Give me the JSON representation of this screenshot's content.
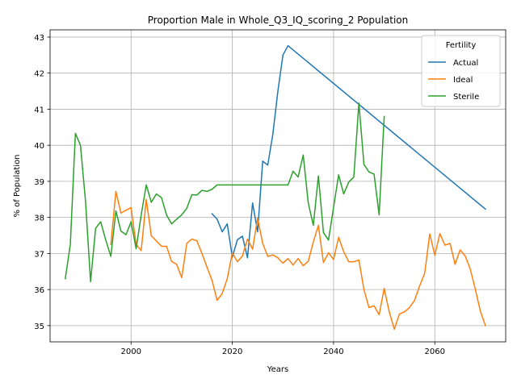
{
  "chart_data": {
    "type": "line",
    "title": "Proportion Male in Whole_Q3_IQ_scoring_2 Population",
    "xlabel": "Years",
    "ylabel": "% of Population",
    "xlim": [
      1984,
      2074
    ],
    "ylim": [
      34.55,
      43.2
    ],
    "xticks": [
      2000,
      2020,
      2040,
      2060
    ],
    "yticks": [
      35,
      36,
      37,
      38,
      39,
      40,
      41,
      42,
      43
    ],
    "grid": true,
    "legend": {
      "title": "Fertility",
      "position": "top-right"
    },
    "series": [
      {
        "name": "Actual",
        "color": "#1f77b4",
        "x": [
          2016,
          2017,
          2018,
          2019,
          2020,
          2021,
          2022,
          2023,
          2024,
          2025,
          2026,
          2027,
          2028,
          2029,
          2030,
          2031,
          2070
        ],
        "y": [
          38.1,
          37.95,
          37.6,
          37.82,
          36.9,
          37.38,
          37.48,
          36.88,
          38.4,
          37.6,
          39.56,
          39.45,
          40.3,
          41.5,
          42.5,
          42.76,
          38.23
        ]
      },
      {
        "name": "Ideal",
        "color": "#ff7f0e",
        "x": [
          1996,
          1997,
          1998,
          1999,
          2000,
          2001,
          2002,
          2003,
          2004,
          2005,
          2006,
          2007,
          2008,
          2009,
          2010,
          2011,
          2012,
          2013,
          2014,
          2015,
          2016,
          2017,
          2018,
          2019,
          2020,
          2021,
          2022,
          2023,
          2024,
          2025,
          2026,
          2027,
          2028,
          2029,
          2030,
          2031,
          2032,
          2033,
          2034,
          2035,
          2036,
          2037,
          2038,
          2039,
          2040,
          2041,
          2042,
          2043,
          2044,
          2045,
          2046,
          2047,
          2048,
          2049,
          2050,
          2051,
          2052,
          2053,
          2054,
          2055,
          2056,
          2057,
          2058,
          2059,
          2060,
          2061,
          2062,
          2063,
          2064,
          2065,
          2066,
          2067,
          2068,
          2069,
          2070
        ],
        "y": [
          37.25,
          38.72,
          38.12,
          38.2,
          38.27,
          37.25,
          37.08,
          38.5,
          37.49,
          37.35,
          37.2,
          37.2,
          36.78,
          36.7,
          36.33,
          37.28,
          37.4,
          37.35,
          37.0,
          36.62,
          36.25,
          35.7,
          35.89,
          36.3,
          37.02,
          36.77,
          36.93,
          37.4,
          37.12,
          37.98,
          37.28,
          36.92,
          36.96,
          36.88,
          36.73,
          36.86,
          36.68,
          36.86,
          36.66,
          36.78,
          37.32,
          37.78,
          36.75,
          37.02,
          36.83,
          37.45,
          37.05,
          36.77,
          36.77,
          36.82,
          36.0,
          35.5,
          35.55,
          35.3,
          36.03,
          35.38,
          34.9,
          35.32,
          35.38,
          35.5,
          35.7,
          36.1,
          36.45,
          37.54,
          36.95,
          37.55,
          37.23,
          37.28,
          36.7,
          37.1,
          36.93,
          36.57,
          36.01,
          35.4,
          35.0
        ]
      },
      {
        "name": "Sterile",
        "color": "#2ca02c",
        "x": [
          1987,
          1988,
          1989,
          1990,
          1991,
          1992,
          1993,
          1994,
          1995,
          1996,
          1997,
          1998,
          1999,
          2000,
          2001,
          2002,
          2003,
          2004,
          2005,
          2006,
          2007,
          2008,
          2009,
          2010,
          2011,
          2012,
          2013,
          2014,
          2015,
          2016,
          2017,
          2018,
          2019,
          2020,
          2021,
          2022,
          2023,
          2024,
          2025,
          2026,
          2027,
          2028,
          2029,
          2030,
          2031,
          2032,
          2033,
          2034,
          2035,
          2036,
          2037,
          2038,
          2039,
          2040,
          2041,
          2042,
          2043,
          2044,
          2045,
          2046,
          2047,
          2048,
          2049,
          2050
        ],
        "y": [
          36.3,
          37.25,
          40.33,
          40.0,
          38.45,
          36.22,
          37.7,
          37.88,
          37.37,
          36.92,
          38.18,
          37.62,
          37.52,
          37.88,
          37.13,
          38.07,
          38.9,
          38.42,
          38.65,
          38.55,
          38.07,
          37.82,
          37.95,
          38.07,
          38.25,
          38.63,
          38.62,
          38.75,
          38.72,
          38.78,
          38.9,
          38.9,
          38.9,
          38.9,
          38.9,
          38.9,
          38.9,
          38.9,
          38.9,
          38.9,
          38.9,
          38.9,
          38.9,
          38.9,
          38.9,
          39.28,
          39.12,
          39.73,
          38.4,
          37.78,
          39.15,
          37.58,
          37.37,
          38.28,
          39.18,
          38.65,
          38.98,
          39.12,
          41.17,
          39.47,
          39.26,
          39.2,
          38.07,
          40.8
        ]
      }
    ]
  }
}
